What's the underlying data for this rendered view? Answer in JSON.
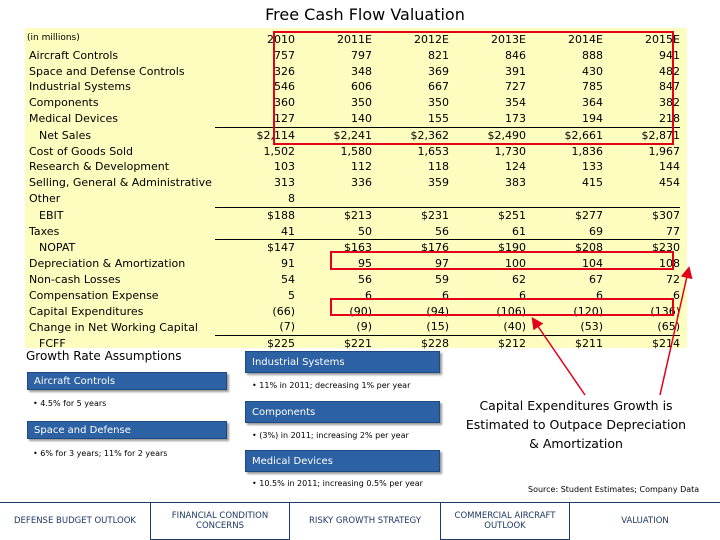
{
  "title": "Free Cash Flow Valuation",
  "table": {
    "units": "(in millions)",
    "columns": [
      "2010",
      "2011E",
      "2012E",
      "2013E",
      "2014E",
      "2015E"
    ],
    "rows": [
      {
        "label": "Aircraft Controls",
        "indent": false,
        "total": false,
        "values": [
          "757",
          "797",
          "821",
          "846",
          "888",
          "941"
        ]
      },
      {
        "label": "Space and Defense Controls",
        "indent": false,
        "total": false,
        "values": [
          "326",
          "348",
          "369",
          "391",
          "430",
          "482"
        ]
      },
      {
        "label": "Industrial Systems",
        "indent": false,
        "total": false,
        "values": [
          "546",
          "606",
          "667",
          "727",
          "785",
          "847"
        ]
      },
      {
        "label": "Components",
        "indent": false,
        "total": false,
        "values": [
          "360",
          "350",
          "350",
          "354",
          "364",
          "382"
        ]
      },
      {
        "label": "Medical Devices",
        "indent": false,
        "total": false,
        "values": [
          "127",
          "140",
          "155",
          "173",
          "194",
          "218"
        ]
      },
      {
        "label": "Net Sales",
        "indent": true,
        "total": true,
        "values": [
          "$2,114",
          "$2,241",
          "$2,362",
          "$2,490",
          "$2,661",
          "$2,871"
        ]
      },
      {
        "label": "Cost of Goods Sold",
        "indent": false,
        "total": false,
        "values": [
          "1,502",
          "1,580",
          "1,653",
          "1,730",
          "1,836",
          "1,967"
        ]
      },
      {
        "label": "Research & Development",
        "indent": false,
        "total": false,
        "values": [
          "103",
          "112",
          "118",
          "124",
          "133",
          "144"
        ]
      },
      {
        "label": "Selling, General & Administrative",
        "indent": false,
        "total": false,
        "values": [
          "313",
          "336",
          "359",
          "383",
          "415",
          "454"
        ]
      },
      {
        "label": "Other",
        "indent": false,
        "total": false,
        "values": [
          "8",
          "",
          "",
          "",
          "",
          ""
        ]
      },
      {
        "label": "EBIT",
        "indent": true,
        "total": true,
        "values": [
          "$188",
          "$213",
          "$231",
          "$251",
          "$277",
          "$307"
        ]
      },
      {
        "label": "Taxes",
        "indent": false,
        "total": false,
        "values": [
          "41",
          "50",
          "56",
          "61",
          "69",
          "77"
        ]
      },
      {
        "label": "NOPAT",
        "indent": true,
        "total": true,
        "values": [
          "$147",
          "$163",
          "$176",
          "$190",
          "$208",
          "$230"
        ]
      },
      {
        "label": "Depreciation & Amortization",
        "indent": false,
        "total": false,
        "values": [
          "91",
          "95",
          "97",
          "100",
          "104",
          "108"
        ]
      },
      {
        "label": "Non-cash Losses",
        "indent": false,
        "total": false,
        "values": [
          "54",
          "56",
          "59",
          "62",
          "67",
          "72"
        ]
      },
      {
        "label": "Compensation Expense",
        "indent": false,
        "total": false,
        "values": [
          "5",
          "6",
          "6",
          "6",
          "6",
          "6"
        ]
      },
      {
        "label": "Capital Expenditures",
        "indent": false,
        "total": false,
        "values": [
          "(66)",
          "(90)",
          "(94)",
          "(106)",
          "(120)",
          "(136)"
        ]
      },
      {
        "label": "Change in Net Working Capital",
        "indent": false,
        "total": false,
        "values": [
          "(7)",
          "(9)",
          "(15)",
          "(40)",
          "(53)",
          "(65)"
        ]
      },
      {
        "label": "FCFF",
        "indent": true,
        "total": true,
        "values": [
          "$225",
          "$221",
          "$228",
          "$212",
          "$211",
          "$214"
        ]
      }
    ]
  },
  "growth": {
    "title": "Growth Rate Assumptions",
    "aircraft": {
      "label": "Aircraft Controls",
      "bullet": "• 4.5% for 5 years"
    },
    "space": {
      "label": "Space and Defense",
      "bullet": "• 6% for 3 years; 11% for 2 years"
    },
    "industrial": {
      "label": "Industrial Systems",
      "bullet": "• 11% in 2011; decreasing 1% per year"
    },
    "components": {
      "label": "Components",
      "bullet": "• (3%) in 2011; increasing 2% per year"
    },
    "medical": {
      "label": "Medical Devices",
      "bullet": "• 10.5% in 2011; increasing 0.5% per year"
    }
  },
  "callout": "Capital Expenditures Growth is Estimated to Outpace Depreciation & Amortization",
  "source": "Source: Student Estimates; Company Data",
  "nav": [
    "DEFENSE BUDGET OUTLOOK",
    "FINANCIAL CONDITION CONCERNS",
    "RISKY GROWTH STRATEGY",
    "COMMERCIAL AIRCRAFT OUTLOOK",
    "VALUATION"
  ],
  "colors": {
    "highlight": "#e3001b",
    "panel": "#fdfdc0",
    "pill": "#2c62a3",
    "nav_text": "#1f3864"
  }
}
